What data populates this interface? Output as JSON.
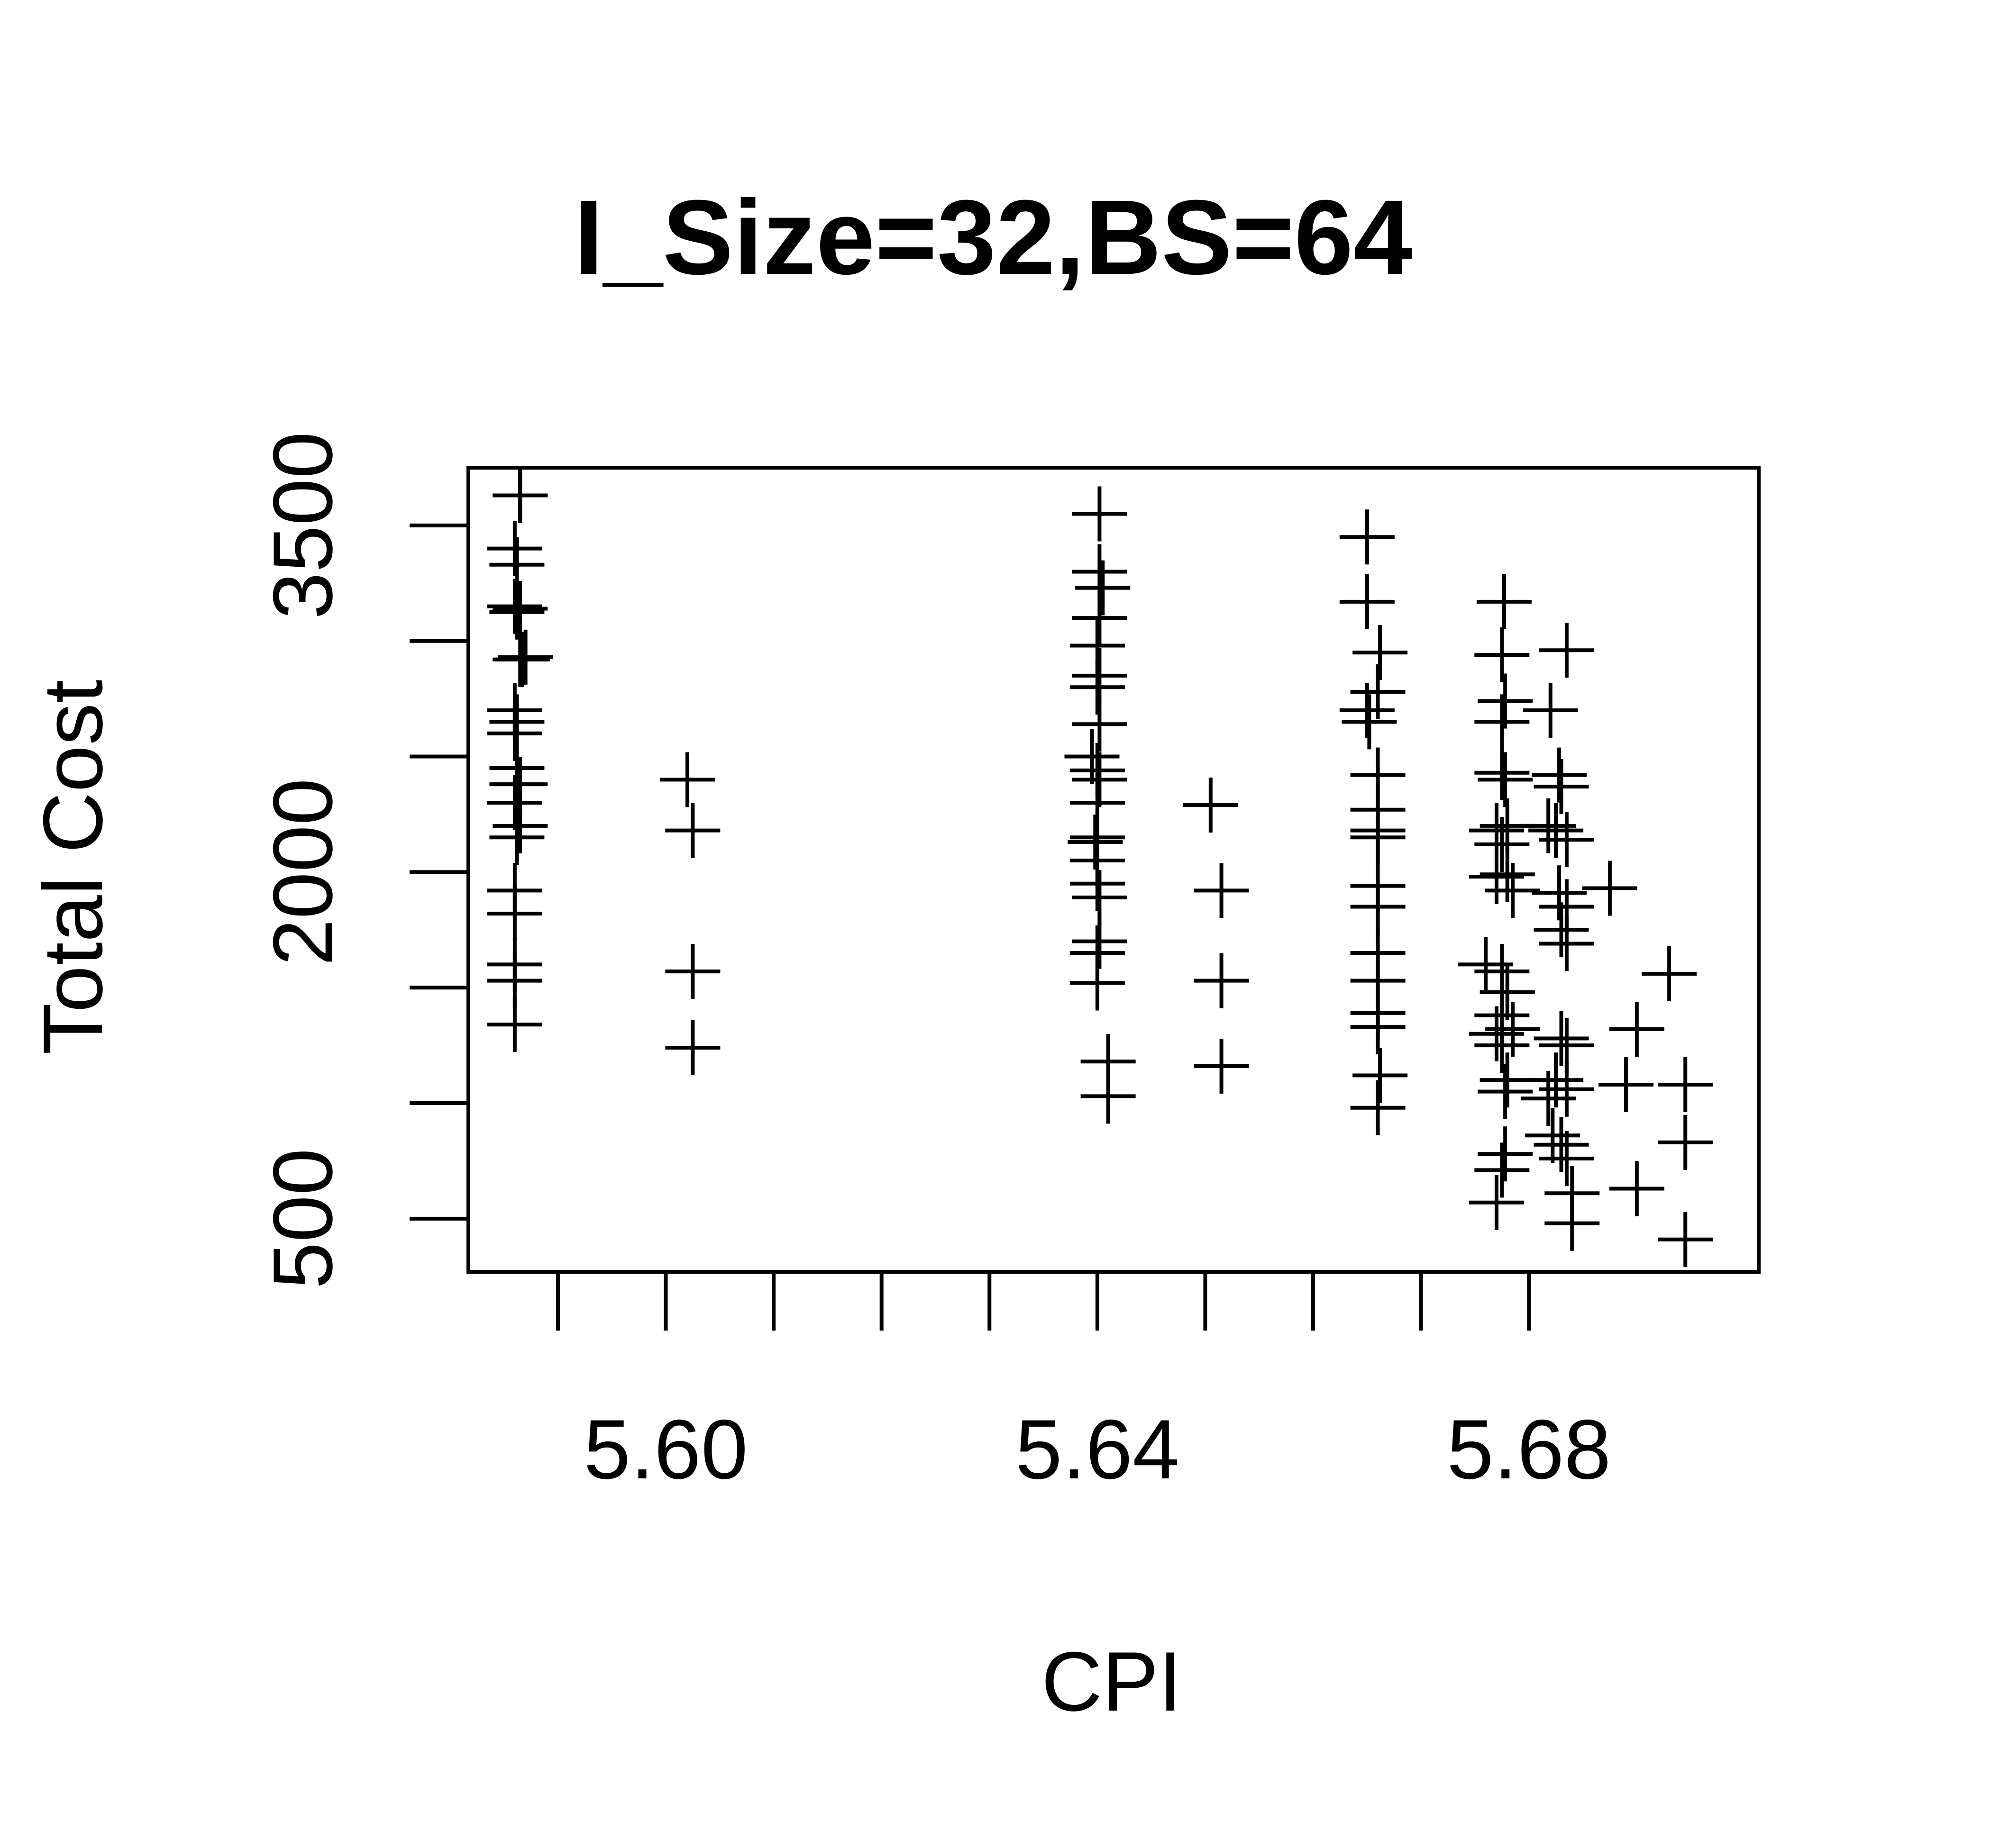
{
  "chart_data": {
    "type": "scatter",
    "title": "I_Size=32,BS=64",
    "xlabel": "CPI",
    "ylabel": "Total Cost",
    "xlim": [
      5.5817,
      5.7013
    ],
    "ylim": [
      270,
      3750
    ],
    "x_ticks": [
      5.59,
      5.6,
      5.61,
      5.62,
      5.63,
      5.64,
      5.65,
      5.66,
      5.67,
      5.68
    ],
    "x_tick_labels": [
      {
        "value": 5.6,
        "label": "5.60"
      },
      {
        "value": 5.64,
        "label": "5.64"
      },
      {
        "value": 5.68,
        "label": "5.68"
      }
    ],
    "y_ticks": [
      500,
      1000,
      1500,
      2000,
      2500,
      3000,
      3500
    ],
    "y_tick_labels": [
      {
        "value": 500,
        "label": "500"
      },
      {
        "value": 2000,
        "label": "2000"
      },
      {
        "value": 3500,
        "label": "3500"
      }
    ],
    "marker": "plus",
    "grid": false,
    "points": [
      {
        "x": 5.5865,
        "y": 3630
      },
      {
        "x": 5.5865,
        "y": 3630
      },
      {
        "x": 5.586,
        "y": 3400
      },
      {
        "x": 5.5862,
        "y": 3330
      },
      {
        "x": 5.586,
        "y": 3150
      },
      {
        "x": 5.5865,
        "y": 3140
      },
      {
        "x": 5.5862,
        "y": 3125
      },
      {
        "x": 5.5867,
        "y": 2920
      },
      {
        "x": 5.5865,
        "y": 2920
      },
      {
        "x": 5.587,
        "y": 2930
      },
      {
        "x": 5.586,
        "y": 2700
      },
      {
        "x": 5.5862,
        "y": 2650
      },
      {
        "x": 5.586,
        "y": 2600
      },
      {
        "x": 5.5862,
        "y": 2450
      },
      {
        "x": 5.5865,
        "y": 2380
      },
      {
        "x": 5.5862,
        "y": 2380
      },
      {
        "x": 5.586,
        "y": 2300
      },
      {
        "x": 5.5865,
        "y": 2200
      },
      {
        "x": 5.5862,
        "y": 2150
      },
      {
        "x": 5.586,
        "y": 1920
      },
      {
        "x": 5.586,
        "y": 1820
      },
      {
        "x": 5.586,
        "y": 1600
      },
      {
        "x": 5.586,
        "y": 1530
      },
      {
        "x": 5.586,
        "y": 1340
      },
      {
        "x": 5.602,
        "y": 2400
      },
      {
        "x": 5.6025,
        "y": 2180
      },
      {
        "x": 5.6025,
        "y": 1570
      },
      {
        "x": 5.6025,
        "y": 1240
      },
      {
        "x": 5.6402,
        "y": 3550
      },
      {
        "x": 5.6402,
        "y": 3300
      },
      {
        "x": 5.6405,
        "y": 3230
      },
      {
        "x": 5.6402,
        "y": 3100
      },
      {
        "x": 5.64,
        "y": 2980
      },
      {
        "x": 5.6402,
        "y": 2850
      },
      {
        "x": 5.64,
        "y": 2800
      },
      {
        "x": 5.6402,
        "y": 2640
      },
      {
        "x": 5.6395,
        "y": 2500
      },
      {
        "x": 5.64,
        "y": 2440
      },
      {
        "x": 5.6402,
        "y": 2400
      },
      {
        "x": 5.64,
        "y": 2300
      },
      {
        "x": 5.64,
        "y": 2150
      },
      {
        "x": 5.6398,
        "y": 2130
      },
      {
        "x": 5.64,
        "y": 2050
      },
      {
        "x": 5.64,
        "y": 1950
      },
      {
        "x": 5.6402,
        "y": 1890
      },
      {
        "x": 5.6402,
        "y": 1700
      },
      {
        "x": 5.64,
        "y": 1650
      },
      {
        "x": 5.64,
        "y": 1520
      },
      {
        "x": 5.641,
        "y": 1180
      },
      {
        "x": 5.641,
        "y": 1030
      },
      {
        "x": 5.6505,
        "y": 2290
      },
      {
        "x": 5.6515,
        "y": 1920
      },
      {
        "x": 5.6515,
        "y": 1530
      },
      {
        "x": 5.6515,
        "y": 1160
      },
      {
        "x": 5.665,
        "y": 3450
      },
      {
        "x": 5.665,
        "y": 3170
      },
      {
        "x": 5.6662,
        "y": 2950
      },
      {
        "x": 5.666,
        "y": 2780
      },
      {
        "x": 5.665,
        "y": 2700
      },
      {
        "x": 5.6652,
        "y": 2650
      },
      {
        "x": 5.666,
        "y": 2420
      },
      {
        "x": 5.666,
        "y": 2270
      },
      {
        "x": 5.666,
        "y": 2180
      },
      {
        "x": 5.666,
        "y": 2150
      },
      {
        "x": 5.666,
        "y": 1940
      },
      {
        "x": 5.666,
        "y": 1850
      },
      {
        "x": 5.666,
        "y": 1650
      },
      {
        "x": 5.666,
        "y": 1530
      },
      {
        "x": 5.666,
        "y": 1390
      },
      {
        "x": 5.666,
        "y": 1330
      },
      {
        "x": 5.6662,
        "y": 1120
      },
      {
        "x": 5.666,
        "y": 980
      },
      {
        "x": 5.6777,
        "y": 3170
      },
      {
        "x": 5.6775,
        "y": 2940
      },
      {
        "x": 5.6835,
        "y": 2960
      },
      {
        "x": 5.6778,
        "y": 2740
      },
      {
        "x": 5.6775,
        "y": 2650
      },
      {
        "x": 5.682,
        "y": 2700
      },
      {
        "x": 5.6775,
        "y": 2430
      },
      {
        "x": 5.6778,
        "y": 2400
      },
      {
        "x": 5.6828,
        "y": 2420
      },
      {
        "x": 5.683,
        "y": 2370
      },
      {
        "x": 5.678,
        "y": 2200
      },
      {
        "x": 5.677,
        "y": 2180
      },
      {
        "x": 5.6818,
        "y": 2200
      },
      {
        "x": 5.6825,
        "y": 2180
      },
      {
        "x": 5.6835,
        "y": 2140
      },
      {
        "x": 5.6775,
        "y": 2120
      },
      {
        "x": 5.678,
        "y": 1990
      },
      {
        "x": 5.677,
        "y": 1980
      },
      {
        "x": 5.6785,
        "y": 1920
      },
      {
        "x": 5.6828,
        "y": 1910
      },
      {
        "x": 5.6835,
        "y": 1850
      },
      {
        "x": 5.6875,
        "y": 1930
      },
      {
        "x": 5.683,
        "y": 1750
      },
      {
        "x": 5.6835,
        "y": 1690
      },
      {
        "x": 5.676,
        "y": 1600
      },
      {
        "x": 5.6775,
        "y": 1570
      },
      {
        "x": 5.678,
        "y": 1480
      },
      {
        "x": 5.6775,
        "y": 1380
      },
      {
        "x": 5.677,
        "y": 1300
      },
      {
        "x": 5.6785,
        "y": 1320
      },
      {
        "x": 5.6775,
        "y": 1250
      },
      {
        "x": 5.683,
        "y": 1280
      },
      {
        "x": 5.6835,
        "y": 1250
      },
      {
        "x": 5.678,
        "y": 1100
      },
      {
        "x": 5.6778,
        "y": 1050
      },
      {
        "x": 5.6818,
        "y": 1020
      },
      {
        "x": 5.6825,
        "y": 1100
      },
      {
        "x": 5.6835,
        "y": 1060
      },
      {
        "x": 5.6822,
        "y": 860
      },
      {
        "x": 5.683,
        "y": 820
      },
      {
        "x": 5.6835,
        "y": 760
      },
      {
        "x": 5.6778,
        "y": 780
      },
      {
        "x": 5.6775,
        "y": 710
      },
      {
        "x": 5.677,
        "y": 570
      },
      {
        "x": 5.684,
        "y": 610
      },
      {
        "x": 5.684,
        "y": 480
      },
      {
        "x": 5.69,
        "y": 1320
      },
      {
        "x": 5.689,
        "y": 1080
      },
      {
        "x": 5.69,
        "y": 630
      },
      {
        "x": 5.693,
        "y": 1560
      },
      {
        "x": 5.6945,
        "y": 1080
      },
      {
        "x": 5.6945,
        "y": 830
      },
      {
        "x": 5.6945,
        "y": 410
      }
    ]
  }
}
